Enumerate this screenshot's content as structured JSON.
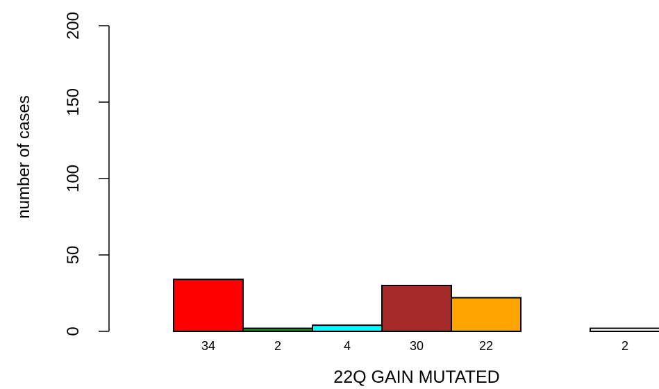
{
  "chart_data": {
    "type": "bar",
    "title": "",
    "xlabel": "22Q GAIN MUTATED",
    "ylabel": "number of cases",
    "ylim": [
      0,
      200
    ],
    "yticks": [
      0,
      50,
      100,
      150,
      200
    ],
    "grid": false,
    "legend": "none",
    "categories": [
      "34",
      "2",
      "4",
      "30",
      "22",
      "",
      "2"
    ],
    "values": [
      34,
      2,
      4,
      30,
      22,
      0,
      2
    ],
    "colors": [
      "#ff0000",
      "#228b22",
      "#00ffff",
      "#a52a2a",
      "#ffa500",
      "#ffffff",
      "#ffffff"
    ]
  }
}
